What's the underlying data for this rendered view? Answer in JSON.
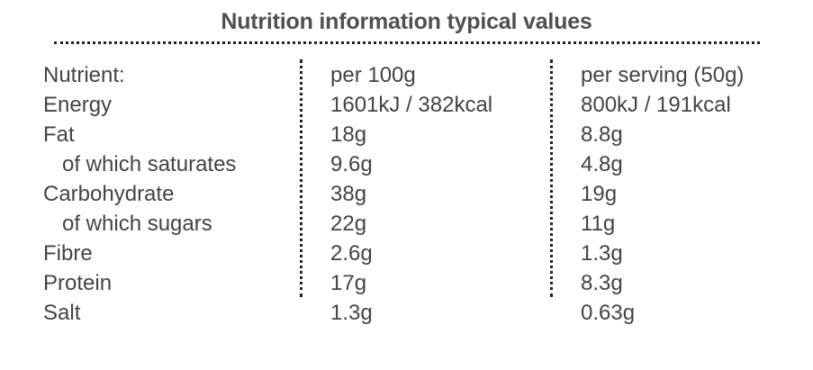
{
  "title": "Nutrition information typical values",
  "headers": {
    "nutrient": "Nutrient:",
    "per_100g": "per 100g",
    "per_serving": "per serving (50g)"
  },
  "rows": [
    {
      "name": "Energy",
      "per_100g": "1601kJ / 382kcal",
      "per_serving": "800kJ / 191kcal",
      "indent": false
    },
    {
      "name": "Fat",
      "per_100g": "18g",
      "per_serving": "8.8g",
      "indent": false
    },
    {
      "name": "of which saturates",
      "per_100g": "9.6g",
      "per_serving": "4.8g",
      "indent": true
    },
    {
      "name": "Carbohydrate",
      "per_100g": "38g",
      "per_serving": "19g",
      "indent": false
    },
    {
      "name": "of which sugars",
      "per_100g": "22g",
      "per_serving": "11g",
      "indent": true
    },
    {
      "name": "Fibre",
      "per_100g": "2.6g",
      "per_serving": "1.3g",
      "indent": false
    },
    {
      "name": "Protein",
      "per_100g": "17g",
      "per_serving": "8.3g",
      "indent": false
    },
    {
      "name": "Salt",
      "per_100g": "1.3g",
      "per_serving": "0.63g",
      "indent": false
    }
  ]
}
